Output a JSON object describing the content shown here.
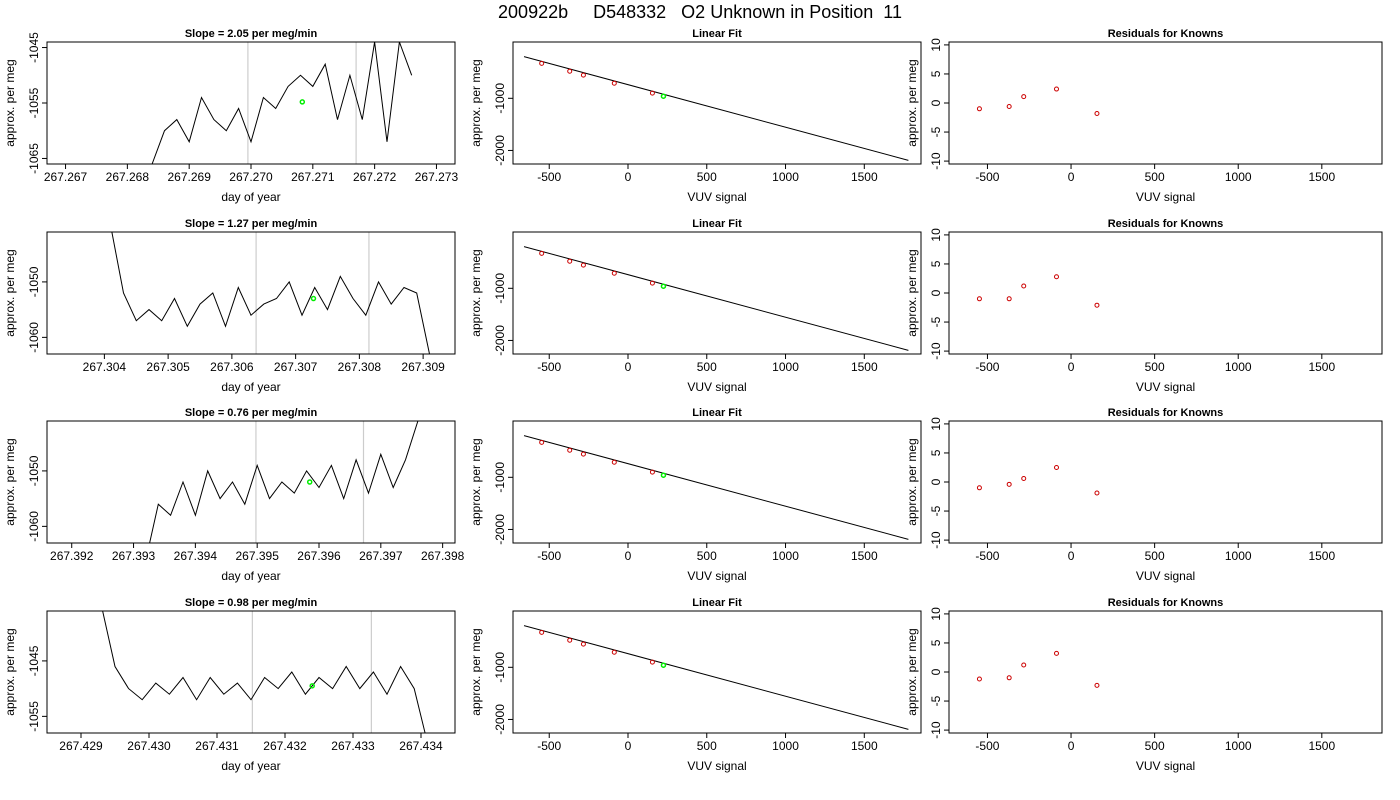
{
  "main_title": "200922b     D548332   O2 Unknown in Position  11",
  "chart_data": [
    {
      "type": "line",
      "panel": "time",
      "row": 0,
      "title": "Slope =  2.05  per meg/min",
      "xlabel": "day of year",
      "ylabel": "approx. per meg",
      "xlim": [
        267.2667,
        267.2733
      ],
      "ylim": [
        -1066,
        -1044
      ],
      "xticks": [
        "267.267",
        "267.268",
        "267.269",
        "267.270",
        "267.271",
        "267.272",
        "267.273"
      ],
      "yticks": [
        "-1045",
        "-1055",
        "-1065"
      ],
      "vlines": [
        267.26995,
        267.2717
      ],
      "marker": {
        "x": 267.27083,
        "y": -1054.8,
        "color": "#00ee00"
      },
      "x": [
        267.2682,
        267.2684,
        267.2686,
        267.2688,
        267.269,
        267.2692,
        267.2694,
        267.2696,
        267.2698,
        267.27,
        267.2702,
        267.2704,
        267.2706,
        267.2708,
        267.271,
        267.2712,
        267.2714,
        267.2716,
        267.2718,
        267.272,
        267.2722,
        267.2724,
        267.2726
      ],
      "y": [
        -1072,
        -1066,
        -1060,
        -1058,
        -1062,
        -1054,
        -1058,
        -1060,
        -1056,
        -1062,
        -1054,
        -1056,
        -1052,
        -1050,
        -1052,
        -1048,
        -1058,
        -1050,
        -1058,
        -1044,
        -1062,
        -1044,
        -1050
      ]
    },
    {
      "type": "scatter",
      "panel": "fit",
      "row": 0,
      "title": "Linear Fit",
      "xlabel": "VUV signal",
      "ylabel": "approx. per meg",
      "xlim": [
        -730,
        1860
      ],
      "ylim": [
        -2260,
        80
      ],
      "xticks": [
        -500,
        0,
        500,
        1000,
        1500
      ],
      "yticks": [
        -1000,
        -2000
      ],
      "line": {
        "x": [
          -660,
          1780
        ],
        "y": [
          -200,
          -2190
        ]
      },
      "points": {
        "x": [
          -548,
          -370,
          -283,
          -87,
          155
        ],
        "y": [
          -330,
          -480,
          -555,
          -710,
          -900
        ],
        "color": "#cc0000"
      },
      "unknown": {
        "x": 225,
        "y": -960,
        "color": "#00ee00"
      }
    },
    {
      "type": "scatter",
      "panel": "resid",
      "row": 0,
      "title": "Residuals for Knowns",
      "xlabel": "VUV signal",
      "ylabel": "approx. per meg",
      "xlim": [
        -730,
        1860
      ],
      "ylim": [
        -10.5,
        10.5
      ],
      "xticks": [
        -500,
        0,
        500,
        1000,
        1500
      ],
      "yticks": [
        10,
        5,
        0,
        -5,
        -10
      ],
      "points": {
        "x": [
          -548,
          -370,
          -283,
          -87,
          155
        ],
        "y": [
          -1.0,
          -0.6,
          1.1,
          2.4,
          -1.8
        ],
        "color": "#cc0000"
      }
    },
    {
      "type": "line",
      "panel": "time",
      "row": 1,
      "title": "Slope =  1.27  per meg/min",
      "xlabel": "day of year",
      "ylabel": "approx. per meg",
      "xlim": [
        267.3031,
        267.3095
      ],
      "ylim": [
        -1063,
        -1041
      ],
      "xticks": [
        "267.304",
        "267.305",
        "267.306",
        "267.307",
        "267.308",
        "267.309"
      ],
      "yticks": [
        "-1050",
        "-1060"
      ],
      "vlines": [
        267.30638,
        267.30815
      ],
      "marker": {
        "x": 267.30728,
        "y": -1053.0,
        "color": "#00ee00"
      },
      "x": [
        267.3041,
        267.3043,
        267.3045,
        267.3047,
        267.3049,
        267.3051,
        267.3053,
        267.3055,
        267.3057,
        267.3059,
        267.3061,
        267.3063,
        267.3065,
        267.3067,
        267.3069,
        267.3071,
        267.3073,
        267.3075,
        267.3077,
        267.3079,
        267.3081,
        267.3083,
        267.3085,
        267.3087,
        267.3089,
        267.3091
      ],
      "y": [
        -1040,
        -1052,
        -1057,
        -1055,
        -1057,
        -1053,
        -1058,
        -1054,
        -1052,
        -1058,
        -1051,
        -1056,
        -1054,
        -1053,
        -1050,
        -1056,
        -1051,
        -1055,
        -1049,
        -1053,
        -1056,
        -1050,
        -1054,
        -1051,
        -1052,
        -1063
      ]
    },
    {
      "type": "scatter",
      "panel": "fit",
      "row": 1,
      "title": "Linear Fit",
      "xlabel": "VUV signal",
      "ylabel": "approx. per meg",
      "xlim": [
        -730,
        1860
      ],
      "ylim": [
        -2260,
        80
      ],
      "xticks": [
        -500,
        0,
        500,
        1000,
        1500
      ],
      "yticks": [
        -1000,
        -2000
      ],
      "line": {
        "x": [
          -660,
          1780
        ],
        "y": [
          -200,
          -2190
        ]
      },
      "points": {
        "x": [
          -548,
          -370,
          -283,
          -87,
          155
        ],
        "y": [
          -330,
          -480,
          -555,
          -710,
          -900
        ],
        "color": "#cc0000"
      },
      "unknown": {
        "x": 225,
        "y": -960,
        "color": "#00ee00"
      }
    },
    {
      "type": "scatter",
      "panel": "resid",
      "row": 1,
      "title": "Residuals for Knowns",
      "xlabel": "VUV signal",
      "ylabel": "approx. per meg",
      "xlim": [
        -730,
        1860
      ],
      "ylim": [
        -10.5,
        10.5
      ],
      "xticks": [
        -500,
        0,
        500,
        1000,
        1500
      ],
      "yticks": [
        10,
        5,
        0,
        -5,
        -10
      ],
      "points": {
        "x": [
          -548,
          -370,
          -283,
          -87,
          155
        ],
        "y": [
          -1.0,
          -1.0,
          1.2,
          2.8,
          -2.1
        ],
        "color": "#cc0000"
      }
    },
    {
      "type": "line",
      "panel": "time",
      "row": 2,
      "title": "Slope =  0.76  per meg/min",
      "xlabel": "day of year",
      "ylabel": "approx. per meg",
      "xlim": [
        267.3916,
        267.3982
      ],
      "ylim": [
        -1063,
        -1041
      ],
      "xticks": [
        "267.392",
        "267.393",
        "267.394",
        "267.395",
        "267.396",
        "267.397",
        "267.398"
      ],
      "yticks": [
        "-1050",
        "-1060"
      ],
      "vlines": [
        267.39498,
        267.39672
      ],
      "marker": {
        "x": 267.39585,
        "y": -1052.0,
        "color": "#00ee00"
      },
      "x": [
        267.3932,
        267.3934,
        267.3936,
        267.3938,
        267.394,
        267.3942,
        267.3944,
        267.3946,
        267.3948,
        267.395,
        267.3952,
        267.3954,
        267.3956,
        267.3958,
        267.396,
        267.3962,
        267.3964,
        267.3966,
        267.3968,
        267.397,
        267.3972,
        267.3974,
        267.3976
      ],
      "y": [
        -1066,
        -1056,
        -1058,
        -1052,
        -1058,
        -1050,
        -1055,
        -1052,
        -1056,
        -1049,
        -1055,
        -1052,
        -1054,
        -1050,
        -1053,
        -1049,
        -1055,
        -1048,
        -1054,
        -1047,
        -1053,
        -1048,
        -1041
      ]
    },
    {
      "type": "scatter",
      "panel": "fit",
      "row": 2,
      "title": "Linear Fit",
      "xlabel": "VUV signal",
      "ylabel": "approx. per meg",
      "xlim": [
        -730,
        1860
      ],
      "ylim": [
        -2260,
        80
      ],
      "xticks": [
        -500,
        0,
        500,
        1000,
        1500
      ],
      "yticks": [
        -1000,
        -2000
      ],
      "line": {
        "x": [
          -660,
          1780
        ],
        "y": [
          -200,
          -2190
        ]
      },
      "points": {
        "x": [
          -548,
          -370,
          -283,
          -87,
          155
        ],
        "y": [
          -330,
          -480,
          -555,
          -710,
          -900
        ],
        "color": "#cc0000"
      },
      "unknown": {
        "x": 225,
        "y": -960,
        "color": "#00ee00"
      }
    },
    {
      "type": "scatter",
      "panel": "resid",
      "row": 2,
      "title": "Residuals for Knowns",
      "xlabel": "VUV signal",
      "ylabel": "approx. per meg",
      "xlim": [
        -730,
        1860
      ],
      "ylim": [
        -10.5,
        10.5
      ],
      "xticks": [
        -500,
        0,
        500,
        1000,
        1500
      ],
      "yticks": [
        10,
        5,
        0,
        -5,
        -10
      ],
      "points": {
        "x": [
          -548,
          -370,
          -283,
          -87,
          155
        ],
        "y": [
          -1.0,
          -0.4,
          0.6,
          2.5,
          -1.9
        ],
        "color": "#cc0000"
      }
    },
    {
      "type": "line",
      "panel": "time",
      "row": 3,
      "title": "Slope =  0.98  per meg/min",
      "xlabel": "day of year",
      "ylabel": "approx. per meg",
      "xlim": [
        267.4285,
        267.4345
      ],
      "ylim": [
        -1058,
        -1036
      ],
      "xticks": [
        "267.429",
        "267.430",
        "267.431",
        "267.432",
        "267.433",
        "267.434"
      ],
      "yticks": [
        "-1045",
        "-1055"
      ],
      "vlines": [
        267.43152,
        267.43327
      ],
      "marker": {
        "x": 267.4324,
        "y": -1049.5,
        "color": "#00ee00"
      },
      "x": [
        267.4293,
        267.4295,
        267.4297,
        267.4299,
        267.4301,
        267.4303,
        267.4305,
        267.4307,
        267.4309,
        267.4311,
        267.4313,
        267.4315,
        267.4317,
        267.4319,
        267.4321,
        267.4323,
        267.4325,
        267.4327,
        267.4329,
        267.4331,
        267.4333,
        267.4335,
        267.4337,
        267.4339,
        267.4341
      ],
      "y": [
        -1035,
        -1046,
        -1050,
        -1052,
        -1049,
        -1051,
        -1048,
        -1052,
        -1048,
        -1051,
        -1049,
        -1052,
        -1048,
        -1050,
        -1047,
        -1051,
        -1048,
        -1050,
        -1046,
        -1050,
        -1047,
        -1051,
        -1046,
        -1050,
        -1060
      ]
    },
    {
      "type": "scatter",
      "panel": "fit",
      "row": 3,
      "title": "Linear Fit",
      "xlabel": "VUV signal",
      "ylabel": "approx. per meg",
      "xlim": [
        -730,
        1860
      ],
      "ylim": [
        -2260,
        80
      ],
      "xticks": [
        -500,
        0,
        500,
        1000,
        1500
      ],
      "yticks": [
        -1000,
        -2000
      ],
      "line": {
        "x": [
          -660,
          1780
        ],
        "y": [
          -200,
          -2190
        ]
      },
      "points": {
        "x": [
          -548,
          -370,
          -283,
          -87,
          155
        ],
        "y": [
          -330,
          -480,
          -555,
          -710,
          -900
        ],
        "color": "#cc0000"
      },
      "unknown": {
        "x": 225,
        "y": -960,
        "color": "#00ee00"
      }
    },
    {
      "type": "scatter",
      "panel": "resid",
      "row": 3,
      "title": "Residuals for Knowns",
      "xlabel": "VUV signal",
      "ylabel": "approx. per meg",
      "xlim": [
        -730,
        1860
      ],
      "ylim": [
        -10.5,
        10.5
      ],
      "xticks": [
        -500,
        0,
        500,
        1000,
        1500
      ],
      "yticks": [
        10,
        5,
        0,
        -5,
        -10
      ],
      "points": {
        "x": [
          -548,
          -370,
          -283,
          -87,
          155
        ],
        "y": [
          -1.2,
          -1.0,
          1.2,
          3.2,
          -2.3
        ],
        "color": "#cc0000"
      }
    }
  ]
}
